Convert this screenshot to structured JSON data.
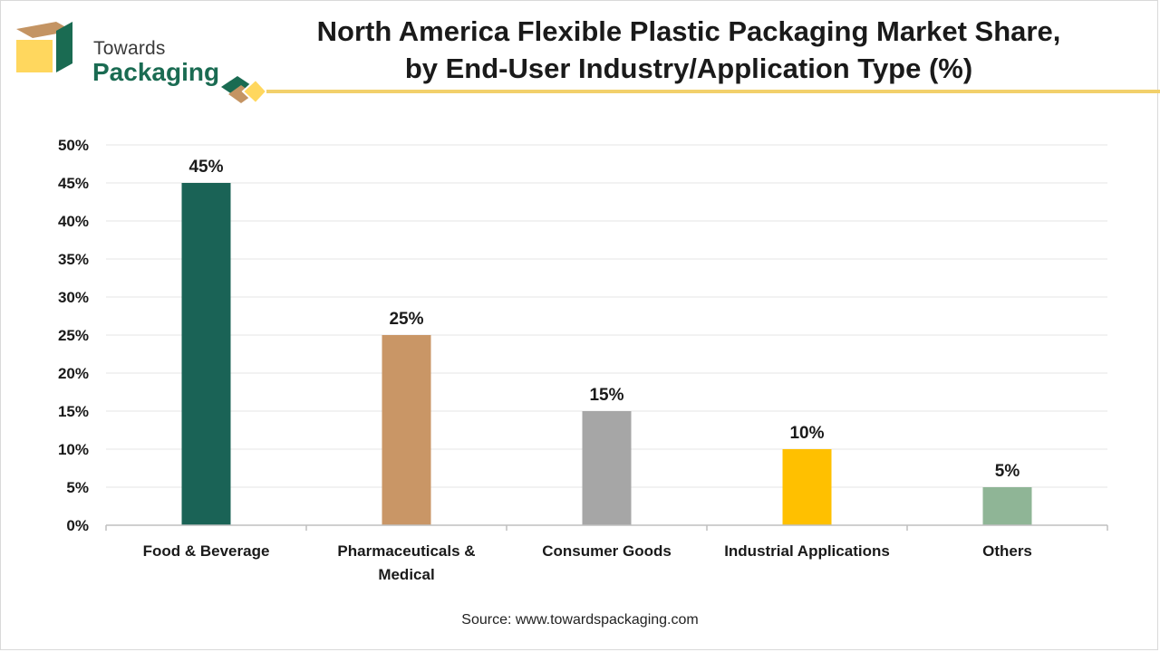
{
  "brand": {
    "line1": "Towards",
    "line2": "Packaging",
    "colors": {
      "green": "#1a6b52",
      "tan": "#c49463",
      "yellow": "#ffd75e"
    }
  },
  "chart_data": {
    "type": "bar",
    "title": "North America Flexible Plastic Packaging Market Share, by End-User Industry/Application Type (%)",
    "title_lines": [
      "North America Flexible Plastic Packaging Market Share,",
      "by End-User Industry/Application Type (%)"
    ],
    "categories": [
      "Food & Beverage",
      "Pharmaceuticals & Medical",
      "Consumer Goods",
      "Industrial Applications",
      "Others"
    ],
    "category_lines": [
      [
        "Food & Beverage"
      ],
      [
        "Pharmaceuticals &",
        "Medical"
      ],
      [
        "Consumer Goods"
      ],
      [
        "Industrial Applications"
      ],
      [
        "Others"
      ]
    ],
    "values": [
      45,
      25,
      15,
      10,
      5
    ],
    "value_labels": [
      "45%",
      "25%",
      "15%",
      "10%",
      "5%"
    ],
    "colors": [
      "#1a6356",
      "#c99666",
      "#a6a6a6",
      "#ffc000",
      "#8fb596"
    ],
    "xlabel": "",
    "ylabel": "",
    "ylim": [
      0,
      50
    ],
    "yticks": [
      0,
      5,
      10,
      15,
      20,
      25,
      30,
      35,
      40,
      45,
      50
    ],
    "ytick_labels": [
      "0%",
      "5%",
      "10%",
      "15%",
      "20%",
      "25%",
      "30%",
      "35%",
      "40%",
      "45%",
      "50%"
    ],
    "grid": true,
    "legend": "none"
  },
  "source": "Source: www.towardspackaging.com"
}
